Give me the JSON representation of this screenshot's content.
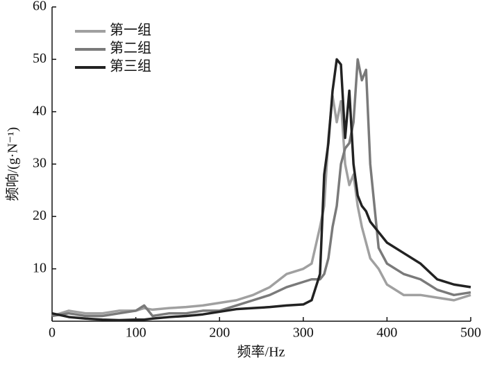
{
  "chart_data": {
    "type": "line",
    "xlabel": "频率/Hz",
    "ylabel": "频响/(g·N⁻¹)",
    "x": [
      0,
      20,
      40,
      60,
      80,
      100,
      110,
      120,
      140,
      160,
      180,
      200,
      220,
      240,
      260,
      280,
      300,
      310,
      320,
      325,
      330,
      335,
      340,
      345,
      350,
      355,
      360,
      365,
      370,
      375,
      380,
      390,
      400,
      420,
      440,
      460,
      480,
      500
    ],
    "series": [
      {
        "name": "第一组",
        "color": "#a0a0a0",
        "values": [
          1,
          2,
          1.5,
          1.5,
          2,
          2,
          2.5,
          2.2,
          2.5,
          2.7,
          3,
          3.5,
          4,
          5,
          6.5,
          9,
          10,
          11,
          18,
          22,
          35,
          43,
          38,
          42,
          30,
          26,
          28,
          22,
          18,
          15,
          12,
          10,
          7,
          5,
          5,
          4.5,
          4,
          5
        ]
      },
      {
        "name": "第二组",
        "color": "#7a7a7a",
        "values": [
          1,
          1.5,
          1,
          1,
          1.5,
          2,
          3,
          1,
          1.5,
          1.5,
          2,
          2,
          3,
          4,
          5,
          6.5,
          7.5,
          8,
          8,
          9,
          12,
          18,
          22,
          30,
          33,
          34,
          38,
          50,
          46,
          48,
          30,
          14,
          11,
          9,
          8,
          6,
          5,
          5.5
        ]
      },
      {
        "name": "第三组",
        "color": "#222222",
        "values": [
          1.5,
          0.8,
          0.5,
          0.3,
          0.2,
          0.3,
          0.3,
          0.5,
          0.8,
          1,
          1.3,
          1.8,
          2.3,
          2.5,
          2.7,
          3,
          3.2,
          4,
          9,
          28,
          34,
          44,
          50,
          49,
          35,
          44,
          30,
          24,
          22,
          21,
          19,
          17,
          15,
          13,
          11,
          8,
          7,
          6.5
        ]
      }
    ],
    "xlim": [
      0,
      500
    ],
    "xticks": [
      0,
      100,
      200,
      300,
      400,
      500
    ],
    "ylim": [
      0,
      60
    ],
    "yticks": [
      10,
      20,
      30,
      40,
      50,
      60
    ],
    "legend": "upper-left",
    "grid": false
  }
}
